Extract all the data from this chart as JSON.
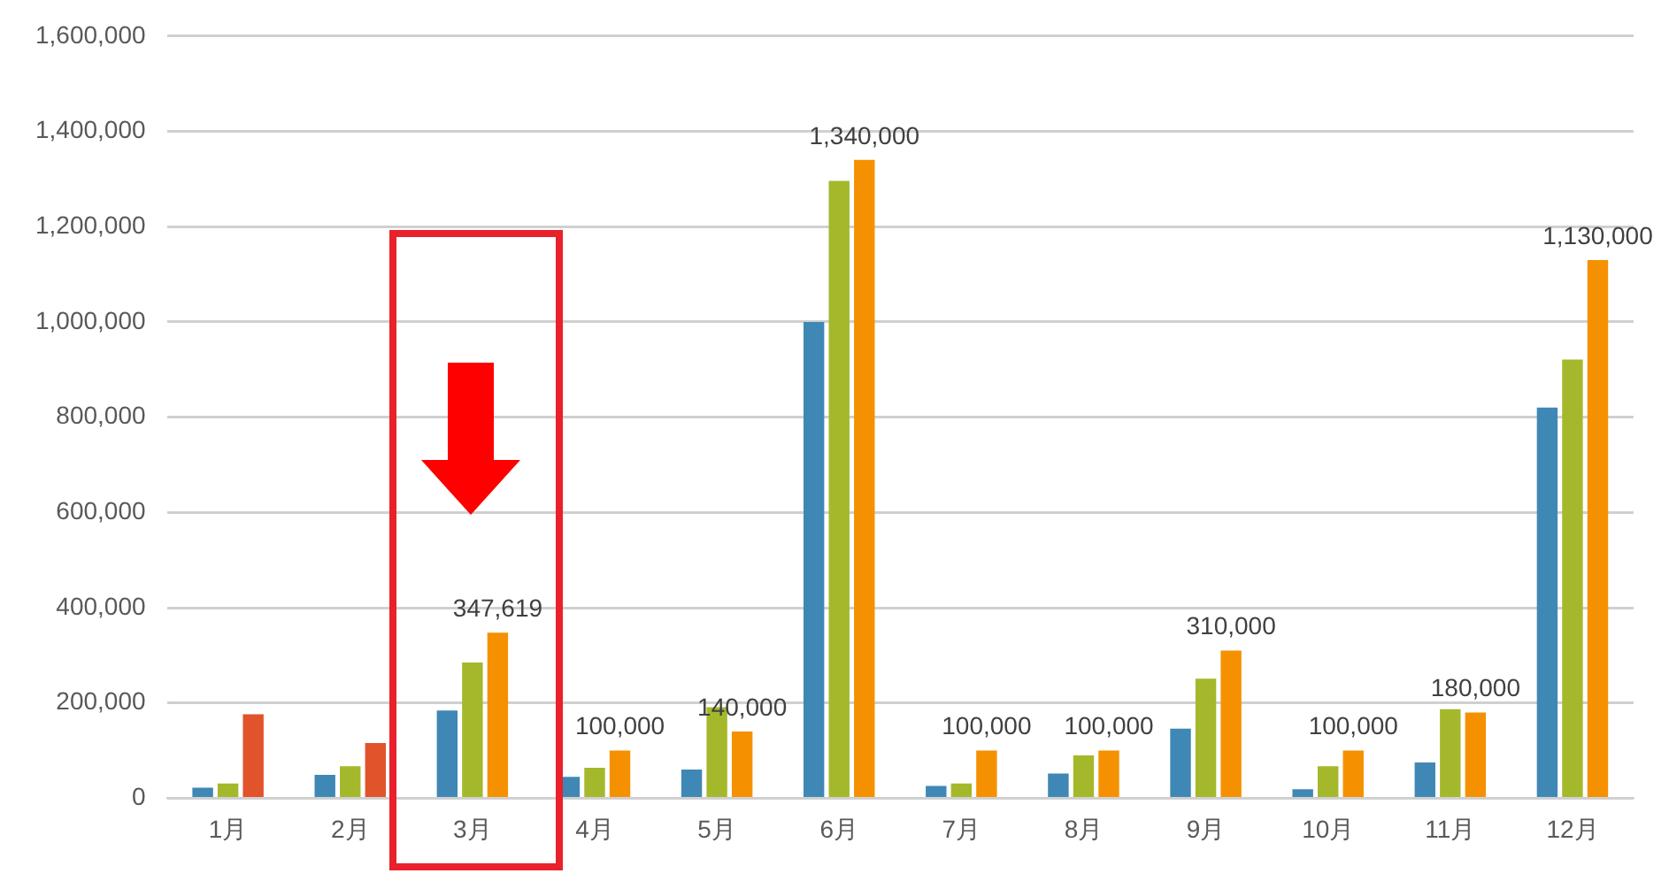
{
  "chart_data": {
    "type": "bar",
    "categories": [
      "1月",
      "2月",
      "3月",
      "4月",
      "5月",
      "6月",
      "7月",
      "8月",
      "9月",
      "10月",
      "11月",
      "12月"
    ],
    "series": [
      {
        "color": "#3f88b5",
        "values": [
          22000,
          49000,
          184000,
          45000,
          60000,
          1000000,
          26000,
          52000,
          146000,
          19000,
          75000,
          820000
        ]
      },
      {
        "color": "#a5b82c",
        "values": [
          31000,
          67000,
          285000,
          64000,
          191000,
          1296000,
          31000,
          90000,
          251000,
          67000,
          187000,
          921000
        ]
      },
      {
        "color": "#f59100",
        "colors": [
          "#e0532b",
          "#e0532b",
          "#f59100",
          "#f59100",
          "#f59100",
          "#f59100",
          "#f59100",
          "#f59100",
          "#f59100",
          "#f59100",
          "#f59100",
          "#f59100"
        ],
        "values": [
          176000,
          116000,
          347619,
          100000,
          140000,
          1340000,
          100000,
          100000,
          310000,
          100000,
          180000,
          1130000
        ],
        "value_labels": [
          null,
          null,
          "347,619",
          "100,000",
          "140,000",
          "1,340,000",
          "100,000",
          "100,000",
          "310,000",
          "100,000",
          "180,000",
          "1,130,000"
        ]
      }
    ],
    "ylim": [
      0,
      1600000
    ],
    "yticks": [
      0,
      {
        "value": 200000,
        "label": "200,000"
      },
      {
        "value": 400000,
        "label": "400,000"
      },
      {
        "value": 600000,
        "label": "600,000"
      },
      {
        "value": 800000,
        "label": "800,000"
      },
      {
        "value": 1000000,
        "label": "1,000,000"
      },
      {
        "value": 1200000,
        "label": "1,200,000"
      },
      {
        "value": 1400000,
        "label": "1,400,000"
      },
      {
        "value": 1600000,
        "label": "1,600,000"
      }
    ],
    "grid": "y",
    "legend": false
  }
}
